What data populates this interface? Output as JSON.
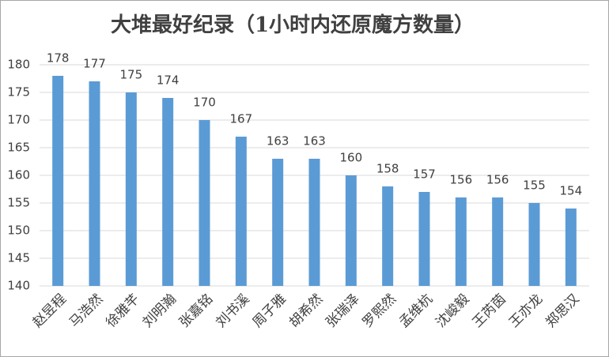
{
  "chart_data": {
    "type": "bar",
    "title": "大堆最好纪录（1小时内还原魔方数量）",
    "categories": [
      "赵昱程",
      "马浩然",
      "徐雅芊",
      "刘明瀚",
      "张嘉铭",
      "刘书溪",
      "周子雅",
      "胡希然",
      "张瑞泽",
      "罗熙然",
      "孟维杭",
      "沈峻毅",
      "王芮茵",
      "王亦龙",
      "郑思汉"
    ],
    "values": [
      178,
      177,
      175,
      174,
      170,
      167,
      163,
      163,
      160,
      158,
      157,
      156,
      156,
      155,
      154
    ],
    "color": "#5b9bd5",
    "ylim": [
      140,
      180
    ],
    "yticks": [
      140,
      145,
      150,
      155,
      160,
      165,
      170,
      175,
      180
    ],
    "grid": true
  }
}
